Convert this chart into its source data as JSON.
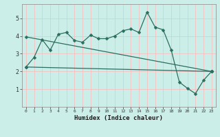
{
  "title": "",
  "xlabel": "Humidex (Indice chaleur)",
  "ylabel": "",
  "bg_color": "#cceee8",
  "grid_color": "#f5c0c0",
  "line_color": "#2a6e60",
  "xlim": [
    -0.5,
    23.5
  ],
  "ylim": [
    0,
    5.8
  ],
  "xticks": [
    0,
    1,
    2,
    3,
    4,
    5,
    6,
    7,
    8,
    9,
    10,
    11,
    12,
    13,
    14,
    15,
    16,
    17,
    18,
    19,
    20,
    21,
    22,
    23
  ],
  "yticks": [
    1,
    2,
    3,
    4,
    5
  ],
  "line1_x": [
    0,
    1,
    2,
    3,
    4,
    5,
    6,
    7,
    8,
    9,
    10,
    11,
    12,
    13,
    14,
    15,
    16,
    17,
    18,
    19,
    20,
    21,
    22,
    23
  ],
  "line1_y": [
    2.25,
    2.8,
    3.8,
    3.2,
    4.1,
    4.2,
    3.75,
    3.65,
    4.05,
    3.85,
    3.85,
    4.0,
    4.3,
    4.4,
    4.2,
    5.35,
    4.5,
    4.35,
    3.2,
    1.4,
    1.05,
    0.75,
    1.5,
    2.0
  ],
  "line2_x": [
    0,
    23
  ],
  "line2_y": [
    3.95,
    2.0
  ],
  "line3_x": [
    0,
    23
  ],
  "line3_y": [
    2.25,
    2.0
  ],
  "markersize": 2.5,
  "linewidth": 0.9
}
